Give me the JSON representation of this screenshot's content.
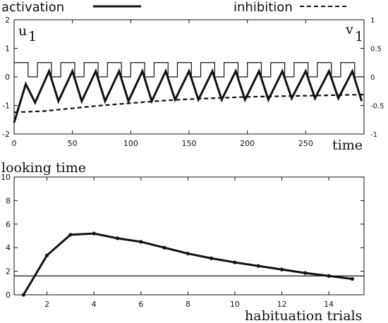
{
  "chart_data": [
    {
      "type": "line",
      "xlabel": "time",
      "ylabel_left": "u",
      "ylabel_left_sub": "1",
      "ylabel_right": "v",
      "ylabel_right_sub": "1",
      "legend": [
        {
          "name": "activation",
          "style": "solid"
        },
        {
          "name": "inhibition",
          "style": "dashed"
        }
      ],
      "legend_placement": "top",
      "xlim": [
        0,
        300
      ],
      "ylim_left": [
        -2,
        2
      ],
      "ylim_right": [
        -1,
        1
      ],
      "xticks": [
        "0",
        "50",
        "100",
        "150",
        "200",
        "250"
      ],
      "yticks_left": [
        "-2",
        "-1",
        "0",
        "1",
        "2"
      ],
      "yticks_right": [
        "-1",
        "-0.5",
        "0",
        "0.5",
        "1"
      ],
      "stimulus_pulse": {
        "period": 20,
        "on_duration": 12,
        "high": 0.5,
        "low": 0,
        "first_on": 0,
        "end": 300
      },
      "series": [
        {
          "name": "activation",
          "axis": "left",
          "x": [
            0,
            10,
            18,
            30,
            38,
            50,
            58,
            70,
            78,
            90,
            98,
            110,
            118,
            130,
            138,
            150,
            158,
            170,
            178,
            190,
            198,
            210,
            218,
            230,
            238,
            250,
            258,
            270,
            278,
            290,
            298
          ],
          "y": [
            -1.6,
            -0.25,
            -0.9,
            0.2,
            -0.85,
            0.2,
            -0.85,
            0.2,
            -0.85,
            0.2,
            -0.85,
            0.2,
            -0.85,
            0.2,
            -0.8,
            0.2,
            -0.8,
            0.2,
            -0.8,
            0.2,
            -0.8,
            0.2,
            -0.8,
            0.2,
            -0.75,
            0.2,
            -0.75,
            0.2,
            -0.75,
            0.2,
            -0.85
          ]
        },
        {
          "name": "inhibition",
          "axis": "right",
          "x": [
            0,
            25,
            50,
            75,
            100,
            125,
            150,
            175,
            200,
            225,
            250,
            275,
            300
          ],
          "y": [
            -0.62,
            -0.6,
            -0.55,
            -0.5,
            -0.46,
            -0.42,
            -0.39,
            -0.37,
            -0.35,
            -0.34,
            -0.33,
            -0.32,
            -0.31
          ]
        }
      ]
    },
    {
      "type": "line",
      "title": "looking time",
      "xlabel": "habituation trials",
      "xlim": [
        0.6,
        15.5
      ],
      "ylim": [
        0,
        10
      ],
      "xticks": [
        "2",
        "4",
        "6",
        "8",
        "10",
        "12",
        "14"
      ],
      "yticks": [
        "0",
        "2",
        "4",
        "6",
        "8",
        "10"
      ],
      "threshold": 1.6,
      "series": [
        {
          "name": "looking time",
          "x": [
            1,
            2,
            3,
            4,
            5,
            6,
            7,
            8,
            9,
            10,
            11,
            12,
            13,
            14,
            15
          ],
          "y": [
            0.0,
            3.35,
            5.1,
            5.2,
            4.8,
            4.5,
            4.0,
            3.5,
            3.1,
            2.75,
            2.45,
            2.15,
            1.85,
            1.6,
            1.35
          ]
        }
      ]
    }
  ]
}
